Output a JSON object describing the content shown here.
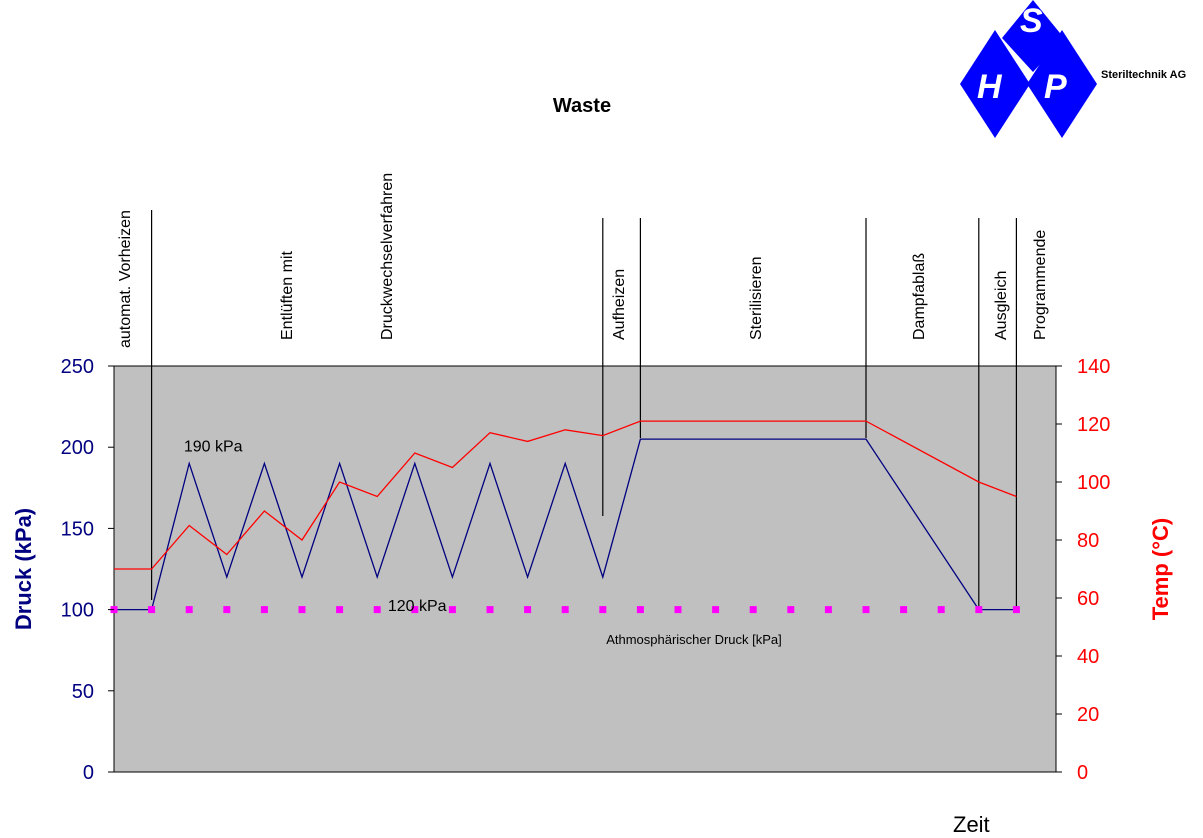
{
  "logo": {
    "letters": [
      "S",
      "H",
      "P"
    ],
    "company": "Steriltechnik AG",
    "colors": {
      "blue": "#0000ff",
      "white": "#ffffff"
    }
  },
  "chart_data": {
    "type": "line",
    "title": "Waste",
    "xlabel": "Zeit",
    "ylabel_left": "Druck (kPa)",
    "ylabel_right": "Temp (°C)",
    "ylim_left": [
      0,
      250
    ],
    "ylim_right": [
      0,
      140
    ],
    "yticks_left": [
      "0",
      "50",
      "100",
      "150",
      "200",
      "250"
    ],
    "yticks_right": [
      "0",
      "20",
      "40",
      "60",
      "80",
      "100",
      "120",
      "140"
    ],
    "x": [
      0,
      1,
      2,
      3,
      4,
      5,
      6,
      7,
      8,
      9,
      10,
      11,
      12,
      13,
      14,
      15,
      16,
      17,
      18,
      19,
      20,
      21,
      22,
      23,
      24,
      25
    ],
    "series": [
      {
        "name": "Druck",
        "axis": "left",
        "color": "#000080",
        "points": [
          [
            0,
            100
          ],
          [
            1,
            100
          ],
          [
            2,
            190
          ],
          [
            3,
            120
          ],
          [
            4,
            190
          ],
          [
            5,
            120
          ],
          [
            6,
            190
          ],
          [
            7,
            120
          ],
          [
            8,
            190
          ],
          [
            9,
            120
          ],
          [
            10,
            190
          ],
          [
            11,
            120
          ],
          [
            12,
            190
          ],
          [
            13,
            120
          ],
          [
            14,
            205
          ],
          [
            20,
            205
          ],
          [
            23,
            100
          ],
          [
            24,
            100
          ]
        ]
      },
      {
        "name": "Temp",
        "axis": "right",
        "color": "#ff0000",
        "points": [
          [
            0,
            70
          ],
          [
            1,
            70
          ],
          [
            2,
            85
          ],
          [
            3,
            75
          ],
          [
            4,
            90
          ],
          [
            5,
            80
          ],
          [
            6,
            100
          ],
          [
            7,
            95
          ],
          [
            8,
            110
          ],
          [
            9,
            105
          ],
          [
            10,
            117
          ],
          [
            11,
            114
          ],
          [
            12,
            118
          ],
          [
            13,
            116
          ],
          [
            14,
            121
          ],
          [
            20,
            121
          ],
          [
            23,
            100
          ],
          [
            24,
            95
          ]
        ]
      },
      {
        "name": "Athmosphärischer Druck [kPa]",
        "axis": "left",
        "color": "#ff00ff",
        "style": "dotted-squares",
        "points": [
          [
            0,
            100
          ],
          [
            1,
            100
          ],
          [
            2,
            100
          ],
          [
            3,
            100
          ],
          [
            4,
            100
          ],
          [
            5,
            100
          ],
          [
            6,
            100
          ],
          [
            7,
            100
          ],
          [
            8,
            100
          ],
          [
            9,
            100
          ],
          [
            10,
            100
          ],
          [
            11,
            100
          ],
          [
            12,
            100
          ],
          [
            13,
            100
          ],
          [
            14,
            100
          ],
          [
            15,
            100
          ],
          [
            16,
            100
          ],
          [
            17,
            100
          ],
          [
            18,
            100
          ],
          [
            19,
            100
          ],
          [
            20,
            100
          ],
          [
            21,
            100
          ],
          [
            22,
            100
          ],
          [
            23,
            100
          ],
          [
            24,
            100
          ]
        ]
      }
    ],
    "phases": [
      {
        "label": "automat. Vorheizen",
        "x": 1
      },
      {
        "label": "Entlüften mit",
        "x": 5
      },
      {
        "label": "Druckwechselverfahren",
        "x": 7.5
      },
      {
        "label": "Aufheizen",
        "x": 13
      },
      {
        "label": "Sterilisieren",
        "x": 14
      },
      {
        "label": "Dampfablaß",
        "x": 20
      },
      {
        "label": "Ausgleich",
        "x": 23
      },
      {
        "label": "Programmende",
        "x": 24
      }
    ],
    "annotations": [
      {
        "text": "190 kPa",
        "x": 2,
        "y": 190
      },
      {
        "text": "120 kPa",
        "x": 7,
        "y": 120
      },
      {
        "text": "Athmosphärischer Druck [kPa]",
        "x": 15.5,
        "y": 82
      }
    ],
    "plot_background": "#c0c0c0"
  }
}
